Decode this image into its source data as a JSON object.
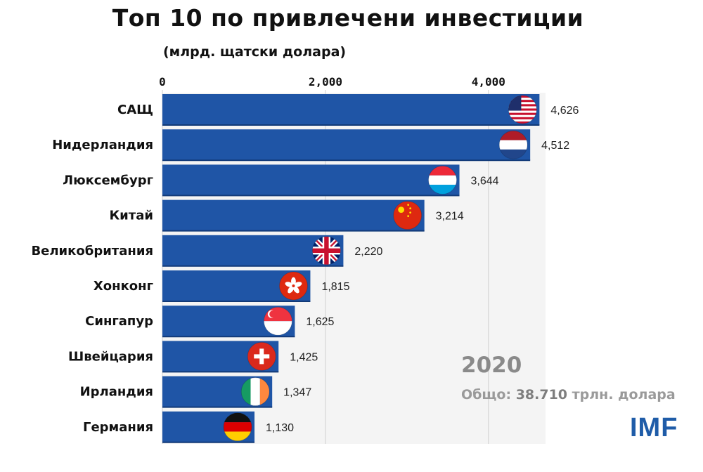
{
  "chart_data": {
    "type": "bar",
    "orientation": "horizontal",
    "title": "Топ 10 по привлечени инвестиции",
    "subtitle": "(млрд. щатски долара)",
    "categories": [
      "САЩ",
      "Нидерландия",
      "Люксембург",
      "Китай",
      "Великобритания",
      "Хонконг",
      "Сингапур",
      "Швейцария",
      "Ирландия",
      "Германия"
    ],
    "values": [
      4626,
      4512,
      3644,
      3214,
      2220,
      1815,
      1625,
      1425,
      1347,
      1130
    ],
    "value_labels": [
      "4,626",
      "4,512",
      "3,644",
      "3,214",
      "2,220",
      "1,815",
      "1,625",
      "1,425",
      "1,347",
      "1,130"
    ],
    "flag_icons": [
      "flag-usa-icon",
      "flag-netherlands-icon",
      "flag-luxembourg-icon",
      "flag-china-icon",
      "flag-uk-icon",
      "flag-hong-kong-icon",
      "flag-singapore-icon",
      "flag-switzerland-icon",
      "flag-ireland-icon",
      "flag-germany-icon"
    ],
    "x_ticks": [
      0,
      2000,
      4000
    ],
    "x_tick_labels": [
      "0",
      "2,000",
      "4,000"
    ],
    "xlim": [
      0,
      4700
    ],
    "axis_position": "top",
    "grid": "vertical",
    "bar_color": "#1f55a6"
  },
  "annotations": {
    "year": "2020",
    "total_prefix": "Общо:",
    "total_amount": "38.710",
    "total_suffix": "трлн. долара"
  },
  "logo": "IMF"
}
